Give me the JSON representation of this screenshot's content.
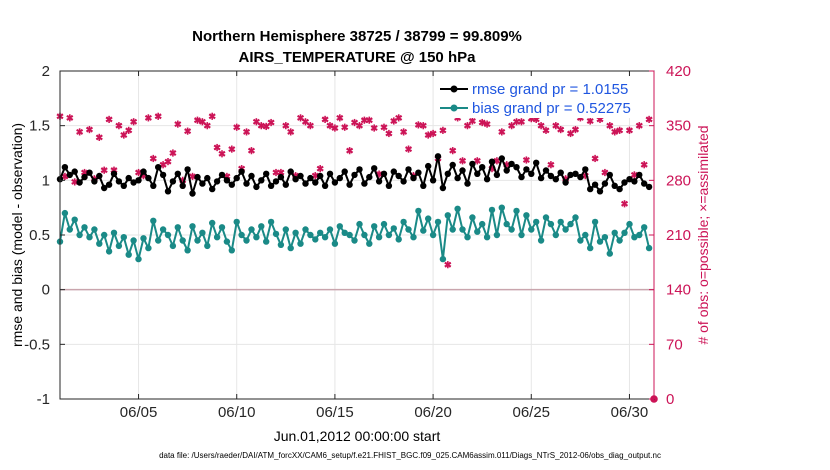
{
  "chart_data": {
    "type": "line",
    "title": "Northern Hemisphere 38725 / 38799 = 99.809%",
    "subtitle": "AIRS_TEMPERATURE @ 150 hPa",
    "xlabel": "Jun.01,2012 00:00:00 start",
    "ylabel": "rmse and bias (model - observation)",
    "y2label": "# of obs: o=possible; ×=assimilated",
    "footer": "data file: /Users/raeder/DAI/ATM_forcXX/CAM6_setup/f.e21.FHIST_BGC.f09_025.CAM6assim.011/Diags_NTrS_2012-06/obs_diag_output.nc",
    "xlim": [
      1.0,
      31.25
    ],
    "ylim": [
      -1,
      2
    ],
    "y2lim": [
      0,
      420
    ],
    "x_ticks": [
      {
        "value": 5,
        "label": "06/05"
      },
      {
        "value": 10,
        "label": "06/10"
      },
      {
        "value": 15,
        "label": "06/15"
      },
      {
        "value": 20,
        "label": "06/20"
      },
      {
        "value": 25,
        "label": "06/25"
      },
      {
        "value": 30,
        "label": "06/30"
      }
    ],
    "y_ticks": [
      {
        "value": 2,
        "label": "2"
      },
      {
        "value": 1.5,
        "label": "1.5"
      },
      {
        "value": 1,
        "label": "1"
      },
      {
        "value": 0.5,
        "label": "0.5"
      },
      {
        "value": 0,
        "label": "0"
      },
      {
        "value": -0.5,
        "label": "-0.5"
      },
      {
        "value": -1,
        "label": "-1"
      }
    ],
    "y2_ticks": [
      {
        "value": 420,
        "label": "420"
      },
      {
        "value": 350,
        "label": "350"
      },
      {
        "value": 280,
        "label": "280"
      },
      {
        "value": 210,
        "label": "210"
      },
      {
        "value": 140,
        "label": "140"
      },
      {
        "value": 70,
        "label": "70"
      },
      {
        "value": 0,
        "label": "0"
      }
    ],
    "grid": true,
    "legend_position": "top-right",
    "x": [
      1.0,
      1.25,
      1.5,
      1.75,
      2.0,
      2.25,
      2.5,
      2.75,
      3.0,
      3.25,
      3.5,
      3.75,
      4.0,
      4.25,
      4.5,
      4.75,
      5.0,
      5.25,
      5.5,
      5.75,
      6.0,
      6.25,
      6.5,
      6.75,
      7.0,
      7.25,
      7.5,
      7.75,
      8.0,
      8.25,
      8.5,
      8.75,
      9.0,
      9.25,
      9.5,
      9.75,
      10.0,
      10.25,
      10.5,
      10.75,
      11.0,
      11.25,
      11.5,
      11.75,
      12.0,
      12.25,
      12.5,
      12.75,
      13.0,
      13.25,
      13.5,
      13.75,
      14.0,
      14.25,
      14.5,
      14.75,
      15.0,
      15.25,
      15.5,
      15.75,
      16.0,
      16.25,
      16.5,
      16.75,
      17.0,
      17.25,
      17.5,
      17.75,
      18.0,
      18.25,
      18.5,
      18.75,
      19.0,
      19.25,
      19.5,
      19.75,
      20.0,
      20.25,
      20.5,
      20.75,
      21.0,
      21.25,
      21.5,
      21.75,
      22.0,
      22.25,
      22.5,
      22.75,
      23.0,
      23.25,
      23.5,
      23.75,
      24.0,
      24.25,
      24.5,
      24.75,
      25.0,
      25.25,
      25.5,
      25.75,
      26.0,
      26.25,
      26.5,
      26.75,
      27.0,
      27.25,
      27.5,
      27.75,
      28.0,
      28.25,
      28.5,
      28.75,
      29.0,
      29.25,
      29.5,
      29.75,
      30.0,
      30.25,
      30.5,
      30.75,
      31.0
    ],
    "series": [
      {
        "name": "rmse grand pr = 1.0155",
        "color": "#000000",
        "marker": "dot",
        "axis": "left",
        "values": [
          1.01,
          1.12,
          1.05,
          1.08,
          0.98,
          1.03,
          1.07,
          0.99,
          1.04,
          0.93,
          0.96,
          1.06,
          0.99,
          0.95,
          1.02,
          0.98,
          1.0,
          1.08,
          1.02,
          0.95,
          1.12,
          1.05,
          0.9,
          0.99,
          1.06,
          0.95,
          1.1,
          0.88,
          1.03,
          0.97,
          1.02,
          0.92,
          0.99,
          1.05,
          1.0,
          0.96,
          1.02,
          1.08,
          0.97,
          1.04,
          0.94,
          1.0,
          1.06,
          0.95,
          0.99,
          1.03,
          0.96,
          1.08,
          1.01,
          1.04,
          0.97,
          1.02,
          0.98,
          1.04,
          0.95,
          1.06,
          0.98,
          1.02,
          1.08,
          0.96,
          1.05,
          1.1,
          0.97,
          1.03,
          1.11,
          0.99,
          1.06,
          0.95,
          1.08,
          1.04,
          0.99,
          1.1,
          1.02,
          1.07,
          0.95,
          1.13,
          1.0,
          1.22,
          0.93,
          1.06,
          1.14,
          1.02,
          1.09,
          0.97,
          1.15,
          1.06,
          1.12,
          1.01,
          1.17,
          1.05,
          1.2,
          1.09,
          1.15,
          1.12,
          1.03,
          1.1,
          1.06,
          1.16,
          1.02,
          1.09,
          1.04,
          1.01,
          1.07,
          0.98,
          1.05,
          1.06,
          1.03,
          1.1,
          0.92,
          0.96,
          0.9,
          0.97,
          1.05,
          0.95,
          0.92,
          0.98,
          1.01,
          0.99,
          1.05,
          0.97,
          0.94
        ]
      },
      {
        "name": "bias grand pr = 0.52275",
        "color": "#1a8a87",
        "marker": "dot",
        "axis": "left",
        "values": [
          0.44,
          0.7,
          0.55,
          0.64,
          0.5,
          0.57,
          0.48,
          0.55,
          0.42,
          0.5,
          0.35,
          0.52,
          0.4,
          0.48,
          0.32,
          0.45,
          0.28,
          0.47,
          0.38,
          0.63,
          0.45,
          0.55,
          0.5,
          0.4,
          0.57,
          0.45,
          0.36,
          0.58,
          0.45,
          0.52,
          0.4,
          0.61,
          0.48,
          0.57,
          0.44,
          0.36,
          0.62,
          0.5,
          0.45,
          0.55,
          0.48,
          0.58,
          0.44,
          0.62,
          0.51,
          0.41,
          0.55,
          0.38,
          0.52,
          0.42,
          0.55,
          0.5,
          0.46,
          0.52,
          0.48,
          0.55,
          0.42,
          0.58,
          0.52,
          0.5,
          0.45,
          0.6,
          0.5,
          0.42,
          0.58,
          0.48,
          0.6,
          0.5,
          0.56,
          0.46,
          0.62,
          0.55,
          0.48,
          0.72,
          0.54,
          0.65,
          0.5,
          0.62,
          0.28,
          0.68,
          0.55,
          0.74,
          0.55,
          0.48,
          0.66,
          0.53,
          0.6,
          0.48,
          0.73,
          0.5,
          0.75,
          0.6,
          0.55,
          0.72,
          0.5,
          0.68,
          0.55,
          0.62,
          0.45,
          0.66,
          0.6,
          0.5,
          0.62,
          0.55,
          0.6,
          0.66,
          0.45,
          0.5,
          0.38,
          0.62,
          0.44,
          0.48,
          0.33,
          0.52,
          0.45,
          0.52,
          0.6,
          0.48,
          0.5,
          0.57,
          0.38
        ]
      }
    ],
    "obs_markers": {
      "color": "#cc1457",
      "marker": "asterisk",
      "axis": "right",
      "points": [
        [
          1.0,
          362
        ],
        [
          1.25,
          285
        ],
        [
          1.5,
          360
        ],
        [
          1.75,
          278
        ],
        [
          2.0,
          342
        ],
        [
          2.25,
          290
        ],
        [
          2.5,
          345
        ],
        [
          2.75,
          282
        ],
        [
          3.0,
          335
        ],
        [
          3.25,
          293
        ],
        [
          3.5,
          358
        ],
        [
          3.75,
          293
        ],
        [
          4.0,
          350
        ],
        [
          4.25,
          338
        ],
        [
          4.5,
          344
        ],
        [
          4.75,
          355
        ],
        [
          5.0,
          290
        ],
        [
          5.25,
          286
        ],
        [
          5.5,
          360
        ],
        [
          5.75,
          308
        ],
        [
          6.0,
          362
        ],
        [
          6.25,
          300
        ],
        [
          6.5,
          304
        ],
        [
          6.75,
          315
        ],
        [
          7.0,
          352
        ],
        [
          7.25,
          280
        ],
        [
          7.5,
          343
        ],
        [
          7.75,
          285
        ],
        [
          8.0,
          357
        ],
        [
          8.25,
          355
        ],
        [
          8.5,
          350
        ],
        [
          8.75,
          362
        ],
        [
          9.0,
          322
        ],
        [
          9.25,
          314
        ],
        [
          9.5,
          285
        ],
        [
          9.75,
          320
        ],
        [
          10.0,
          348
        ],
        [
          10.25,
          295
        ],
        [
          10.5,
          342
        ],
        [
          10.75,
          318
        ],
        [
          11.0,
          355
        ],
        [
          11.25,
          350
        ],
        [
          11.5,
          349
        ],
        [
          11.75,
          354
        ],
        [
          12.0,
          290
        ],
        [
          12.25,
          290
        ],
        [
          12.5,
          350
        ],
        [
          12.75,
          342
        ],
        [
          13.0,
          286
        ],
        [
          13.25,
          360
        ],
        [
          13.5,
          355
        ],
        [
          13.75,
          350
        ],
        [
          14.0,
          286
        ],
        [
          14.25,
          295
        ],
        [
          14.5,
          358
        ],
        [
          14.75,
          350
        ],
        [
          15.0,
          347
        ],
        [
          15.25,
          360
        ],
        [
          15.5,
          348
        ],
        [
          15.75,
          318
        ],
        [
          16.0,
          354
        ],
        [
          16.25,
          350
        ],
        [
          16.5,
          357
        ],
        [
          16.75,
          357
        ],
        [
          17.0,
          347
        ],
        [
          17.25,
          288
        ],
        [
          17.5,
          348
        ],
        [
          17.75,
          340
        ],
        [
          18.0,
          356
        ],
        [
          18.25,
          360
        ],
        [
          18.5,
          342
        ],
        [
          18.75,
          320
        ],
        [
          19.0,
          286
        ],
        [
          19.25,
          351
        ],
        [
          19.5,
          350
        ],
        [
          19.75,
          338
        ],
        [
          20.0,
          340
        ],
        [
          20.25,
          308
        ],
        [
          20.5,
          344
        ],
        [
          20.75,
          172
        ],
        [
          21.0,
          318
        ],
        [
          21.25,
          360
        ],
        [
          21.5,
          305
        ],
        [
          21.75,
          350
        ],
        [
          22.0,
          356
        ],
        [
          22.25,
          305
        ],
        [
          22.5,
          354
        ],
        [
          22.75,
          352
        ],
        [
          23.0,
          295
        ],
        [
          23.25,
          305
        ],
        [
          23.5,
          342
        ],
        [
          23.75,
          300
        ],
        [
          24.0,
          350
        ],
        [
          24.25,
          355
        ],
        [
          24.5,
          355
        ],
        [
          24.75,
          306
        ],
        [
          25.0,
          359
        ],
        [
          25.25,
          358
        ],
        [
          25.5,
          350
        ],
        [
          25.75,
          344
        ],
        [
          26.0,
          300
        ],
        [
          26.25,
          350
        ],
        [
          26.5,
          345
        ],
        [
          26.75,
          282
        ],
        [
          27.0,
          340
        ],
        [
          27.25,
          345
        ],
        [
          27.5,
          360
        ],
        [
          27.75,
          286
        ],
        [
          28.0,
          356
        ],
        [
          28.25,
          308
        ],
        [
          28.5,
          358
        ],
        [
          28.75,
          290
        ],
        [
          29.0,
          350
        ],
        [
          29.25,
          342
        ],
        [
          29.5,
          344
        ],
        [
          29.75,
          250
        ],
        [
          30.0,
          344
        ],
        [
          30.25,
          287
        ],
        [
          30.5,
          350
        ],
        [
          30.75,
          300
        ],
        [
          31.0,
          358
        ]
      ]
    }
  }
}
